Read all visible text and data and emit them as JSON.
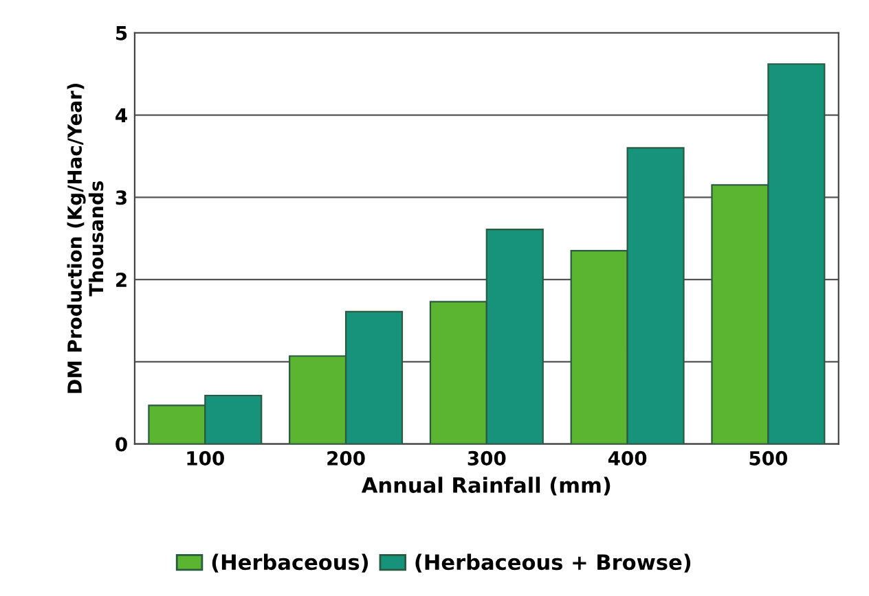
{
  "chart_data": {
    "type": "bar",
    "xlabel": "Annual Rainfall (mm)",
    "ylabel": "DM Production (Kg/Hac/Year)\nThousands",
    "categories": [
      "100",
      "200",
      "300",
      "400",
      "500"
    ],
    "series": [
      {
        "name": "(Herbaceous)",
        "color": "#5cb531",
        "values": [
          0.47,
          1.07,
          1.73,
          2.35,
          3.15
        ]
      },
      {
        "name": "(Herbaceous + Browse)",
        "color": "#16937a",
        "values": [
          0.59,
          1.61,
          2.61,
          3.6,
          4.62
        ]
      }
    ],
    "ylim": [
      0,
      5
    ],
    "yticks": [
      0,
      {
        "value": 1,
        "label": null
      },
      2,
      3,
      4,
      5
    ],
    "grid": "y",
    "legend": "bottom"
  }
}
